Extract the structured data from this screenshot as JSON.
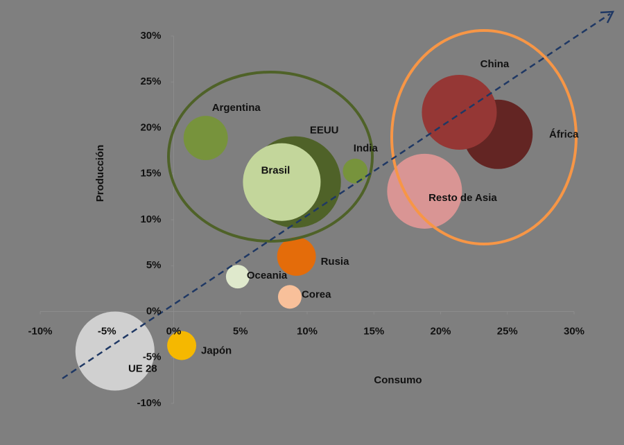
{
  "chart_data": {
    "type": "bubble",
    "x_label": "Consumo",
    "y_label": "Producción",
    "xlim": [
      -10,
      30
    ],
    "xticks": [
      {
        "value": -10,
        "label": "-10%"
      },
      {
        "value": -5,
        "label": "-5%"
      },
      {
        "value": 0,
        "label": "0%"
      },
      {
        "value": 5,
        "label": "5%"
      },
      {
        "value": 10,
        "label": "10%"
      },
      {
        "value": 15,
        "label": "15%"
      },
      {
        "value": 20,
        "label": "20%"
      },
      {
        "value": 25,
        "label": "25%"
      },
      {
        "value": 30,
        "label": "30%"
      }
    ],
    "ylim": [
      -10,
      30
    ],
    "yticks": [
      {
        "value": -10,
        "label": "-10%"
      },
      {
        "value": -5,
        "label": "-5%"
      },
      {
        "value": 0,
        "label": "0%"
      },
      {
        "value": 5,
        "label": "5%"
      },
      {
        "value": 10,
        "label": "10%"
      },
      {
        "value": 15,
        "label": "15%"
      },
      {
        "value": 20,
        "label": "20%"
      },
      {
        "value": 25,
        "label": "25%"
      },
      {
        "value": 30,
        "label": "30%"
      }
    ],
    "series": [
      {
        "name": "UE 28",
        "color": "#d0d0d0",
        "x": [
          -4.4
        ],
        "y": [
          -4.3
        ],
        "size": [
          32.5
        ]
      },
      {
        "name": "Japón",
        "color": "#f5b800",
        "x": [
          0.6
        ],
        "y": [
          -3.7
        ],
        "size": [
          4.4
        ]
      },
      {
        "name": "Corea",
        "color": "#f8c09a",
        "x": [
          8.7
        ],
        "y": [
          1.6
        ],
        "size": [
          2.9
        ]
      },
      {
        "name": "Oceania",
        "color": "#dfe9cc",
        "x": [
          4.8
        ],
        "y": [
          3.8
        ],
        "size": [
          2.9
        ]
      },
      {
        "name": "Rusia",
        "color": "#e46c0a",
        "x": [
          9.2
        ],
        "y": [
          6.0
        ],
        "size": [
          7.8
        ]
      },
      {
        "name": "Argentina",
        "color": "#77933c",
        "x": [
          2.4
        ],
        "y": [
          18.9
        ],
        "size": [
          10.2
        ]
      },
      {
        "name": "EEUU",
        "color": "#4f6228",
        "x": [
          9.1
        ],
        "y": [
          14.1
        ],
        "size": [
          43.6
        ]
      },
      {
        "name": "Brasil",
        "color": "#c3d69b",
        "x": [
          8.1
        ],
        "y": [
          14.1
        ],
        "size": [
          31.4
        ]
      },
      {
        "name": "India",
        "color": "#77933c",
        "x": [
          13.6
        ],
        "y": [
          15.3
        ],
        "size": [
          3.2
        ]
      },
      {
        "name": "Resto de Asia",
        "color": "#d99594",
        "x": [
          18.8
        ],
        "y": [
          13.1
        ],
        "size": [
          29.2
        ]
      },
      {
        "name": "África",
        "color": "#632523",
        "x": [
          24.3
        ],
        "y": [
          19.3
        ],
        "size": [
          25.0
        ]
      },
      {
        "name": "China",
        "color": "#953735",
        "x": [
          21.4
        ],
        "y": [
          21.7
        ],
        "size": [
          29.2
        ]
      }
    ]
  }
}
